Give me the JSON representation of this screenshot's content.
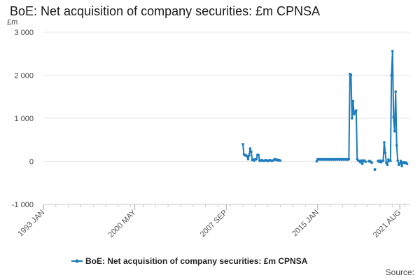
{
  "page": {
    "title": "BoE: Net acquisition of company securities: £m CPNSA",
    "unit_label": "£m",
    "source_label": "Source:"
  },
  "chart_data": {
    "type": "line",
    "title": "BoE: Net acquisition of company securities: £m CPNSA",
    "ylabel": "£m",
    "xlabel": "",
    "ylim": [
      -1000,
      3000
    ],
    "yticks": [
      -1000,
      0,
      1000,
      2000,
      3000
    ],
    "ytick_labels": [
      "-1 000",
      "0",
      "1 000",
      "2 000",
      "3 000"
    ],
    "xlim": [
      "1993-01",
      "2022-06"
    ],
    "xticks": [
      "1993-01",
      "2000-05",
      "2007-09",
      "2015-01",
      "2021-08"
    ],
    "xtick_labels": [
      "1993 JAN",
      "2000 MAY",
      "2007 SEP",
      "2015 JAN",
      "2021 AUG"
    ],
    "grid": "horizontal",
    "legend_position": "bottom",
    "color": "#1c7cbd",
    "series": [
      {
        "name": "BoE: Net acquisition of company securities: £m CPNSA",
        "segments": [
          [
            [
              "2009-01",
              400
            ],
            [
              "2009-02",
              160
            ],
            [
              "2009-03",
              140
            ],
            [
              "2009-04",
              140
            ],
            [
              "2009-05",
              120
            ],
            [
              "2009-06",
              50
            ],
            [
              "2009-07",
              140
            ],
            [
              "2009-08",
              300
            ],
            [
              "2009-09",
              220
            ],
            [
              "2009-10",
              30
            ],
            [
              "2009-11",
              40
            ],
            [
              "2009-12",
              20
            ],
            [
              "2010-01",
              50
            ],
            [
              "2010-02",
              50
            ],
            [
              "2010-03",
              150
            ],
            [
              "2010-04",
              150
            ],
            [
              "2010-05",
              20
            ],
            [
              "2010-06",
              10
            ],
            [
              "2010-07",
              30
            ],
            [
              "2010-08",
              20
            ],
            [
              "2010-09",
              10
            ],
            [
              "2010-10",
              20
            ],
            [
              "2010-11",
              30
            ],
            [
              "2010-12",
              20
            ],
            [
              "2011-01",
              10
            ],
            [
              "2011-02",
              20
            ],
            [
              "2011-03",
              30
            ],
            [
              "2011-04",
              20
            ],
            [
              "2011-05",
              10
            ],
            [
              "2011-06",
              20
            ],
            [
              "2011-07",
              40
            ],
            [
              "2011-08",
              50
            ],
            [
              "2011-09",
              30
            ],
            [
              "2011-10",
              40
            ],
            [
              "2011-11",
              20
            ],
            [
              "2011-12",
              30
            ],
            [
              "2012-01",
              20
            ]
          ],
          [
            [
              "2014-12",
              0
            ],
            [
              "2015-01",
              50
            ],
            [
              "2015-02",
              40
            ],
            [
              "2015-03",
              50
            ],
            [
              "2015-04",
              40
            ],
            [
              "2015-05",
              50
            ],
            [
              "2015-06",
              40
            ],
            [
              "2015-07",
              50
            ],
            [
              "2015-08",
              40
            ],
            [
              "2015-09",
              50
            ],
            [
              "2015-10",
              40
            ],
            [
              "2015-11",
              50
            ],
            [
              "2015-12",
              40
            ],
            [
              "2016-01",
              50
            ],
            [
              "2016-02",
              40
            ],
            [
              "2016-03",
              50
            ],
            [
              "2016-04",
              40
            ],
            [
              "2016-05",
              50
            ],
            [
              "2016-06",
              40
            ],
            [
              "2016-07",
              50
            ],
            [
              "2016-08",
              40
            ],
            [
              "2016-09",
              50
            ],
            [
              "2016-10",
              40
            ],
            [
              "2016-11",
              50
            ],
            [
              "2016-12",
              40
            ],
            [
              "2017-01",
              50
            ],
            [
              "2017-02",
              40
            ],
            [
              "2017-03",
              50
            ],
            [
              "2017-04",
              40
            ],
            [
              "2017-05",
              50
            ],
            [
              "2017-06",
              40
            ],
            [
              "2017-07",
              50
            ],
            [
              "2017-08",
              2030
            ],
            [
              "2017-09",
              2010
            ],
            [
              "2017-10",
              1000
            ],
            [
              "2017-11",
              1400
            ],
            [
              "2017-12",
              1100
            ],
            [
              "2018-01",
              1150
            ],
            [
              "2018-02",
              1180
            ],
            [
              "2018-03",
              50
            ],
            [
              "2018-04",
              20
            ],
            [
              "2018-05",
              10
            ],
            [
              "2018-06",
              -20
            ],
            [
              "2018-07",
              20
            ],
            [
              "2018-08",
              -60
            ],
            [
              "2018-09",
              20
            ],
            [
              "2018-10",
              20
            ],
            [
              "2018-11",
              -10
            ]
          ],
          [
            [
              "2019-02",
              0
            ],
            [
              "2019-03",
              10
            ],
            [
              "2019-04",
              -10
            ],
            [
              "2019-05",
              -30
            ]
          ],
          [
            [
              "2019-11",
              10
            ],
            [
              "2019-12",
              -10
            ],
            [
              "2020-01",
              20
            ],
            [
              "2020-02",
              -20
            ],
            [
              "2020-03",
              0
            ],
            [
              "2020-04",
              20
            ],
            [
              "2020-05",
              440
            ],
            [
              "2020-06",
              200
            ],
            [
              "2020-07",
              -30
            ],
            [
              "2020-08",
              -80
            ],
            [
              "2020-09",
              40
            ],
            [
              "2020-10",
              10
            ],
            [
              "2020-11",
              10
            ],
            [
              "2020-12",
              2000
            ],
            [
              "2021-01",
              2560
            ],
            [
              "2021-02",
              1030
            ],
            [
              "2021-03",
              700
            ],
            [
              "2021-04",
              1620
            ],
            [
              "2021-05",
              370
            ],
            [
              "2021-06",
              20
            ],
            [
              "2021-07",
              -80
            ],
            [
              "2021-08",
              -50
            ],
            [
              "2021-09",
              10
            ],
            [
              "2021-10",
              -110
            ],
            [
              "2021-11",
              -30
            ],
            [
              "2021-12",
              -20
            ],
            [
              "2022-01",
              -40
            ],
            [
              "2022-02",
              -30
            ],
            [
              "2022-03",
              -60
            ]
          ]
        ],
        "isolated_points": [
          [
            "2019-08",
            -190
          ]
        ]
      }
    ]
  }
}
